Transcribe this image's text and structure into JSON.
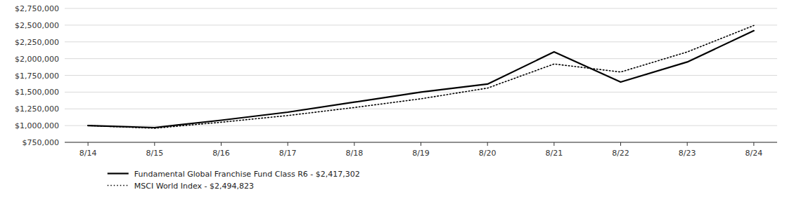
{
  "chart_data": {
    "type": "line",
    "categories": [
      "8/14",
      "8/15",
      "8/16",
      "8/17",
      "8/18",
      "8/19",
      "8/20",
      "8/21",
      "8/22",
      "8/23",
      "8/24"
    ],
    "series": [
      {
        "name": "Fundamental Global Franchise Fund Class R6 - $2,417,302",
        "color": "#000000",
        "line_style": "solid",
        "values": [
          1000000,
          970000,
          1080000,
          1200000,
          1350000,
          1500000,
          1620000,
          2100000,
          1650000,
          1950000,
          2417302
        ]
      },
      {
        "name": "MSCI World Index - $2,494,823",
        "color": "#000000",
        "line_style": "dotted",
        "values": [
          1000000,
          960000,
          1050000,
          1150000,
          1270000,
          1400000,
          1560000,
          1920000,
          1800000,
          2100000,
          2494823
        ]
      }
    ],
    "ylim": [
      750000,
      2750000
    ],
    "yticks": [
      {
        "value": 750000,
        "label": "$750,000"
      },
      {
        "value": 1000000,
        "label": "$1,000,000"
      },
      {
        "value": 1250000,
        "label": "$1,250,000"
      },
      {
        "value": 1500000,
        "label": "$1,500,000"
      },
      {
        "value": 1750000,
        "label": "$1,750,000"
      },
      {
        "value": 2000000,
        "label": "$2,000,000"
      },
      {
        "value": 2250000,
        "label": "$2,250,000"
      },
      {
        "value": 2500000,
        "label": "$2,500,000"
      },
      {
        "value": 2750000,
        "label": "$2,750,000"
      }
    ],
    "grid": true,
    "legend": "bottom-left"
  }
}
